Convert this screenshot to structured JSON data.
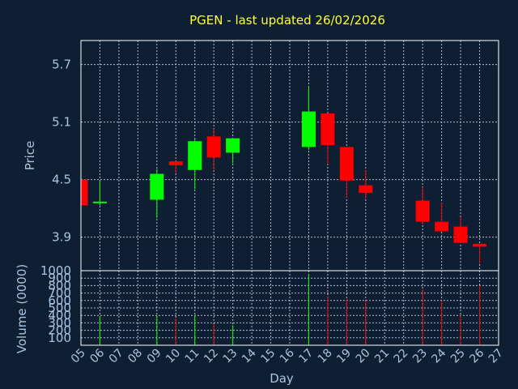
{
  "title": "PGEN - last updated 26/02/2026",
  "colors": {
    "background": "#0f1f33",
    "up": "#00ff00",
    "down": "#ff0000",
    "title": "#ffff33",
    "text": "#a9c4e0",
    "frame": "#ffffff"
  },
  "chart_data": [
    {
      "type": "candlestick",
      "ylabel": "Price",
      "ylim": [
        3.55,
        5.95
      ],
      "yticks": [
        "3.9",
        "4.5",
        "5.1",
        "5.7"
      ],
      "grid": true,
      "candles": [
        {
          "day": "05",
          "open": 4.5,
          "high": 4.5,
          "low": 4.23,
          "close": 4.23
        },
        {
          "day": "06",
          "open": 4.26,
          "high": 4.48,
          "low": 4.23,
          "close": 4.27
        },
        {
          "day": "09",
          "open": 4.29,
          "high": 4.61,
          "low": 4.1,
          "close": 4.56
        },
        {
          "day": "10",
          "open": 4.69,
          "high": 4.69,
          "low": 4.57,
          "close": 4.65
        },
        {
          "day": "11",
          "open": 4.6,
          "high": 4.93,
          "low": 4.4,
          "close": 4.9
        },
        {
          "day": "12",
          "open": 4.95,
          "high": 5.03,
          "low": 4.6,
          "close": 4.73
        },
        {
          "day": "13",
          "open": 4.78,
          "high": 4.93,
          "low": 4.67,
          "close": 4.93
        },
        {
          "day": "17",
          "open": 4.84,
          "high": 5.47,
          "low": 4.81,
          "close": 5.21
        },
        {
          "day": "18",
          "open": 5.19,
          "high": 5.19,
          "low": 4.66,
          "close": 4.86
        },
        {
          "day": "19",
          "open": 4.84,
          "high": 4.84,
          "low": 4.31,
          "close": 4.49
        },
        {
          "day": "20",
          "open": 4.44,
          "high": 4.6,
          "low": 4.3,
          "close": 4.36
        },
        {
          "day": "23",
          "open": 4.28,
          "high": 4.42,
          "low": 4.03,
          "close": 4.06
        },
        {
          "day": "24",
          "open": 4.06,
          "high": 4.26,
          "low": 3.96,
          "close": 3.96
        },
        {
          "day": "25",
          "open": 4.01,
          "high": 4.11,
          "low": 3.84,
          "close": 3.84
        },
        {
          "day": "26",
          "open": 3.83,
          "high": 3.83,
          "low": 3.62,
          "close": 3.8
        }
      ]
    },
    {
      "type": "bar",
      "ylabel": "Volume (0000)",
      "xlabel": "Day",
      "ylim": [
        0,
        1000
      ],
      "yticks": [
        "100",
        "200",
        "300",
        "400",
        "500",
        "600",
        "700",
        "800",
        "900",
        "1000"
      ],
      "categories": [
        "05",
        "06",
        "07",
        "08",
        "09",
        "10",
        "11",
        "12",
        "13",
        "14",
        "15",
        "16",
        "17",
        "18",
        "19",
        "20",
        "21",
        "22",
        "23",
        "24",
        "25",
        "26",
        "27"
      ],
      "bars": [
        {
          "day": "06",
          "value": 390,
          "direction": "up"
        },
        {
          "day": "09",
          "value": 400,
          "direction": "up"
        },
        {
          "day": "10",
          "value": 360,
          "direction": "down"
        },
        {
          "day": "11",
          "value": 400,
          "direction": "up"
        },
        {
          "day": "12",
          "value": 280,
          "direction": "down"
        },
        {
          "day": "13",
          "value": 270,
          "direction": "up"
        },
        {
          "day": "17",
          "value": 950,
          "direction": "up"
        },
        {
          "day": "18",
          "value": 650,
          "direction": "down"
        },
        {
          "day": "19",
          "value": 620,
          "direction": "down"
        },
        {
          "day": "20",
          "value": 600,
          "direction": "down"
        },
        {
          "day": "23",
          "value": 750,
          "direction": "down"
        },
        {
          "day": "24",
          "value": 600,
          "direction": "down"
        },
        {
          "day": "25",
          "value": 400,
          "direction": "down"
        },
        {
          "day": "26",
          "value": 800,
          "direction": "down"
        }
      ]
    }
  ]
}
